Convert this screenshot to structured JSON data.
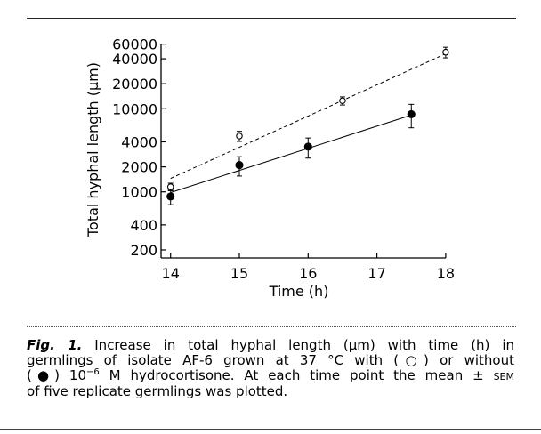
{
  "chart_data": {
    "type": "scatter",
    "xlabel": "Time (h)",
    "ylabel": "Total hyphal length (µm)",
    "xlim": [
      14,
      18
    ],
    "ylim": [
      200,
      60000
    ],
    "yscale": "log",
    "xticks": [
      14,
      15,
      16,
      17,
      18
    ],
    "xtick_labels": [
      "14",
      "15",
      "16",
      "17",
      "18"
    ],
    "yticks": [
      200,
      400,
      1000,
      2000,
      4000,
      10000,
      20000,
      40000,
      60000
    ],
    "ytick_labels": [
      "200",
      "400",
      "1000",
      "2000",
      "4000",
      "10000",
      "20000",
      "40000",
      "60000"
    ],
    "grid": false,
    "series": [
      {
        "name": "with 10^-6 M hydrocortisone (open circles)",
        "marker": "open-circle",
        "line": "dashed",
        "x": [
          14,
          15,
          16.5,
          18
        ],
        "y": [
          1150,
          4700,
          12500,
          48000
        ],
        "err": [
          120,
          650,
          1400,
          7000
        ],
        "fit": {
          "x": [
            14,
            18
          ],
          "y": [
            1450,
            46000
          ]
        }
      },
      {
        "name": "without hydrocortisone (filled circles)",
        "marker": "filled-circle",
        "line": "solid",
        "x": [
          14,
          15,
          16,
          17.5
        ],
        "y": [
          880,
          2100,
          3500,
          8600
        ],
        "err": [
          180,
          550,
          950,
          2700
        ],
        "fit": {
          "x": [
            14,
            17.5
          ],
          "y": [
            980,
            8400
          ]
        }
      }
    ]
  },
  "caption": {
    "label": "Fig. 1.",
    "line1": " Increase in total hyphal length (µm) with time (h) in",
    "line2": "germlings of isolate AF-6 grown at 37 °C with (○) or without",
    "line3a": "(●) 10",
    "line3sup": "−6",
    "line3b": " M hydrocortisone. At each time point the mean ± ",
    "line3sem": "SEM",
    "line4": "of five replicate germlings was plotted."
  }
}
